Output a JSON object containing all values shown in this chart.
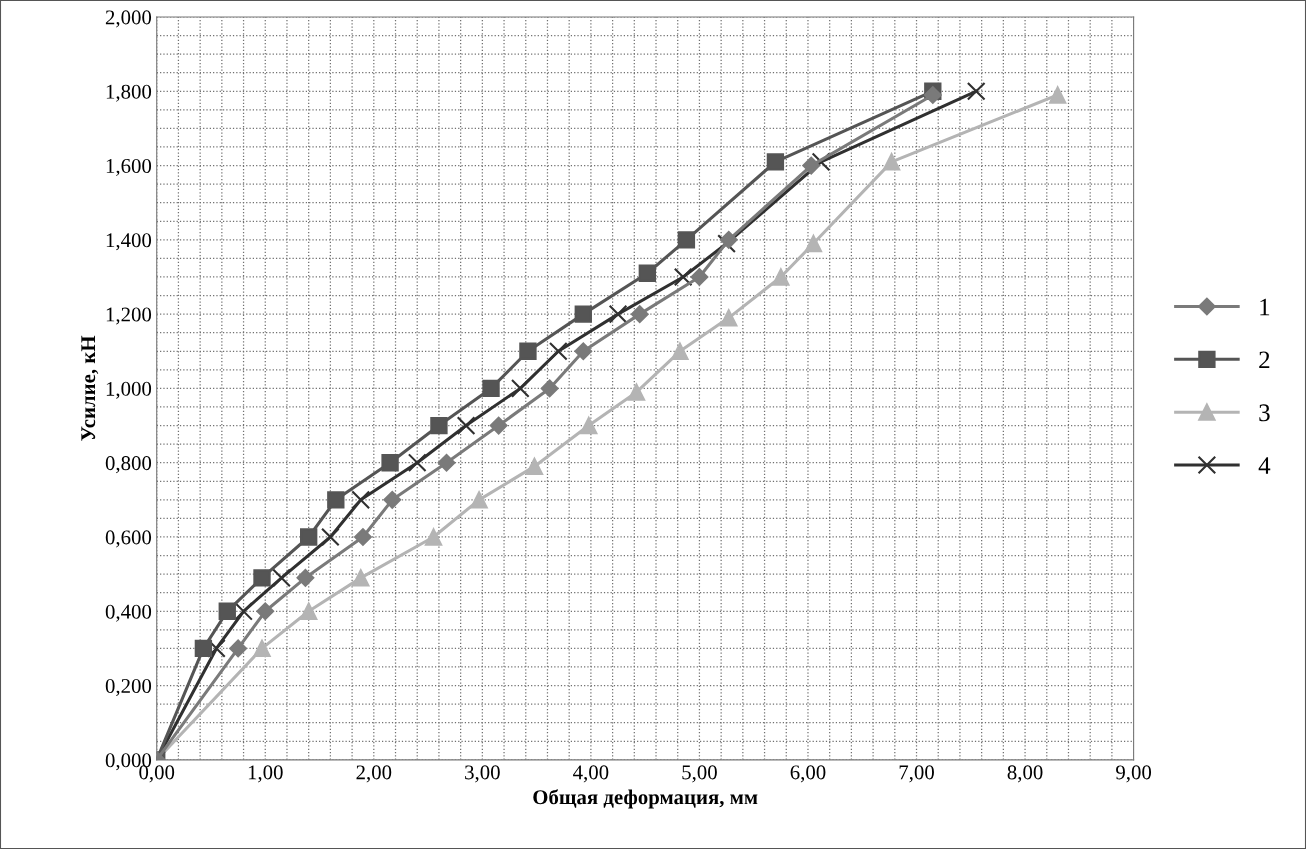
{
  "chart_data": {
    "type": "line",
    "xlabel": "Общая деформация, мм",
    "ylabel": "Усилие, кН",
    "xlim": [
      0,
      9
    ],
    "ylim": [
      0,
      2
    ],
    "xticks": [
      {
        "value": 0,
        "label": "0,00"
      },
      {
        "value": 1,
        "label": "1,00"
      },
      {
        "value": 2,
        "label": "2,00"
      },
      {
        "value": 3,
        "label": "3,00"
      },
      {
        "value": 4,
        "label": "4,00"
      },
      {
        "value": 5,
        "label": "5,00"
      },
      {
        "value": 6,
        "label": "6,00"
      },
      {
        "value": 7,
        "label": "7,00"
      },
      {
        "value": 8,
        "label": "8,00"
      },
      {
        "value": 9,
        "label": "9,00"
      }
    ],
    "yticks": [
      {
        "value": 0,
        "label": "0,000"
      },
      {
        "value": 0.2,
        "label": "0,200"
      },
      {
        "value": 0.4,
        "label": "0,400"
      },
      {
        "value": 0.6,
        "label": "0,600"
      },
      {
        "value": 0.8,
        "label": "0,800"
      },
      {
        "value": 1.0,
        "label": "1,000"
      },
      {
        "value": 1.2,
        "label": "1,200"
      },
      {
        "value": 1.4,
        "label": "1,400"
      },
      {
        "value": 1.6,
        "label": "1,600"
      },
      {
        "value": 1.8,
        "label": "1,800"
      },
      {
        "value": 2.0,
        "label": "2,000"
      }
    ],
    "grid": true,
    "legend": "right",
    "line_style": "solid",
    "series": [
      {
        "name": "1",
        "color": "#7a7a7a",
        "marker": "diamond",
        "x": [
          0,
          0.75,
          1.0,
          1.37,
          1.9,
          2.17,
          2.67,
          3.15,
          3.62,
          3.93,
          4.45,
          5.0,
          5.27,
          6.03,
          7.15
        ],
        "values": [
          0,
          0.3,
          0.4,
          0.49,
          0.6,
          0.7,
          0.8,
          0.9,
          1.0,
          1.1,
          1.2,
          1.3,
          1.4,
          1.6,
          1.79
        ]
      },
      {
        "name": "2",
        "color": "#555555",
        "marker": "square",
        "x": [
          0,
          0.43,
          0.65,
          0.97,
          1.4,
          1.65,
          2.15,
          2.6,
          3.08,
          3.42,
          3.93,
          4.52,
          4.88,
          5.7,
          7.15
        ],
        "values": [
          0,
          0.3,
          0.4,
          0.49,
          0.6,
          0.7,
          0.8,
          0.9,
          1.0,
          1.1,
          1.2,
          1.31,
          1.4,
          1.61,
          1.8
        ]
      },
      {
        "name": "3",
        "color": "#b4b4b4",
        "marker": "triangle",
        "x": [
          0,
          0.97,
          1.4,
          1.88,
          2.55,
          2.97,
          3.48,
          3.98,
          4.42,
          4.82,
          5.27,
          5.75,
          6.05,
          6.77,
          8.3
        ],
        "values": [
          0,
          0.3,
          0.4,
          0.49,
          0.6,
          0.7,
          0.79,
          0.9,
          0.99,
          1.1,
          1.19,
          1.3,
          1.39,
          1.61,
          1.79
        ]
      },
      {
        "name": "4",
        "color": "#303030",
        "marker": "cross",
        "x": [
          0,
          0.55,
          0.8,
          1.15,
          1.6,
          1.88,
          2.4,
          2.85,
          3.35,
          3.7,
          4.25,
          4.85,
          5.25,
          6.12,
          7.55
        ],
        "values": [
          0,
          0.3,
          0.4,
          0.49,
          0.6,
          0.7,
          0.8,
          0.9,
          1.0,
          1.1,
          1.2,
          1.3,
          1.39,
          1.61,
          1.8
        ]
      }
    ]
  }
}
